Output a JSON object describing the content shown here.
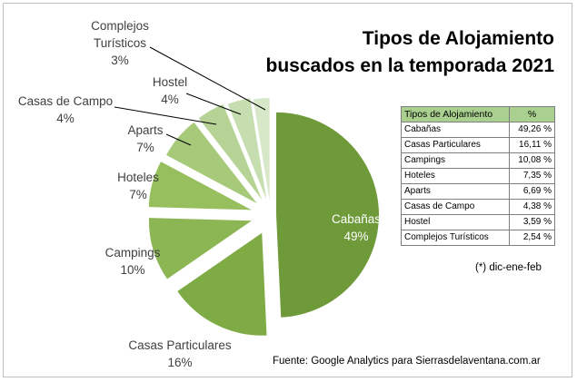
{
  "title_line1": "Tipos de Alojamiento",
  "title_line2": "buscados en la temporada 2021",
  "note": "(*) dic-ene-feb",
  "source": "Fuente: Google Analytics para Sierrasdelaventana.com.ar",
  "table": {
    "header_type": "Tipos de Alojamiento",
    "header_pct": "%",
    "rows": [
      {
        "type": "Cabañas",
        "pct": "49,26 %"
      },
      {
        "type": "Casas Particulares",
        "pct": "16,11 %"
      },
      {
        "type": "Campings",
        "pct": "10,08 %"
      },
      {
        "type": "Hoteles",
        "pct": "7,35 %"
      },
      {
        "type": "Aparts",
        "pct": "6,69 %"
      },
      {
        "type": "Casas de Campo",
        "pct": "4,38 %"
      },
      {
        "type": "Hostel",
        "pct": "3,59 %"
      },
      {
        "type": "Complejos Turísticos",
        "pct": "2,54 %"
      }
    ]
  },
  "chart_data": {
    "type": "pie",
    "categories": [
      "Cabañas",
      "Casas Particulares",
      "Campings",
      "Hoteles",
      "Aparts",
      "Casas de Campo",
      "Hostel",
      "Complejos Turísticos"
    ],
    "values": [
      49.26,
      16.11,
      10.08,
      7.35,
      6.69,
      4.38,
      3.59,
      2.54
    ],
    "data_labels": [
      [
        "Cabañas",
        "49%"
      ],
      [
        "Casas Particulares",
        "16%"
      ],
      [
        "Campings",
        "10%"
      ],
      [
        "Hoteles",
        "7%"
      ],
      [
        "Aparts",
        "7%"
      ],
      [
        "Casas de Campo",
        "4%"
      ],
      [
        "Hostel",
        "4%"
      ],
      [
        "Complejos",
        "Turísticos",
        "3%"
      ]
    ],
    "colors": [
      "#6f9a3a",
      "#7fab45",
      "#8cb553",
      "#97bf5d",
      "#a6c97a",
      "#b6d395",
      "#c6ddb0",
      "#d6e8c8"
    ],
    "label_color": "#404040",
    "legend": "none"
  }
}
